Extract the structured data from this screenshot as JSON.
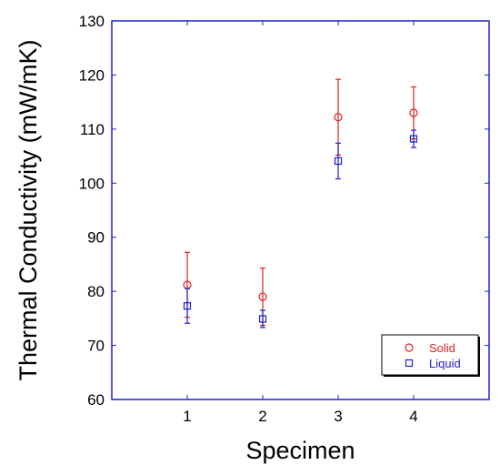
{
  "chart_data": {
    "type": "scatter",
    "xlabel": "Specimen",
    "ylabel": "Thermal Conductivity (mW/mK)",
    "xlim": [
      0,
      5
    ],
    "ylim": [
      60,
      130
    ],
    "x_ticks": [
      1,
      2,
      3,
      4
    ],
    "y_ticks": [
      60,
      70,
      80,
      90,
      100,
      110,
      120,
      130
    ],
    "grid": false,
    "legend_position": "bottom-right",
    "axis_color": "#2222cc",
    "series": [
      {
        "name": "Solid",
        "marker": "circle",
        "color": "#e02020",
        "x": [
          1,
          2,
          3,
          4
        ],
        "y": [
          81.2,
          79.0,
          112.2,
          113.0
        ],
        "error": [
          6.0,
          5.3,
          7.0,
          4.8
        ]
      },
      {
        "name": "Liquid",
        "marker": "square",
        "color": "#2020d0",
        "x": [
          1,
          2,
          3,
          4
        ],
        "y": [
          77.3,
          74.9,
          104.1,
          108.2
        ],
        "error": [
          3.2,
          1.6,
          3.3,
          1.6
        ]
      }
    ]
  }
}
